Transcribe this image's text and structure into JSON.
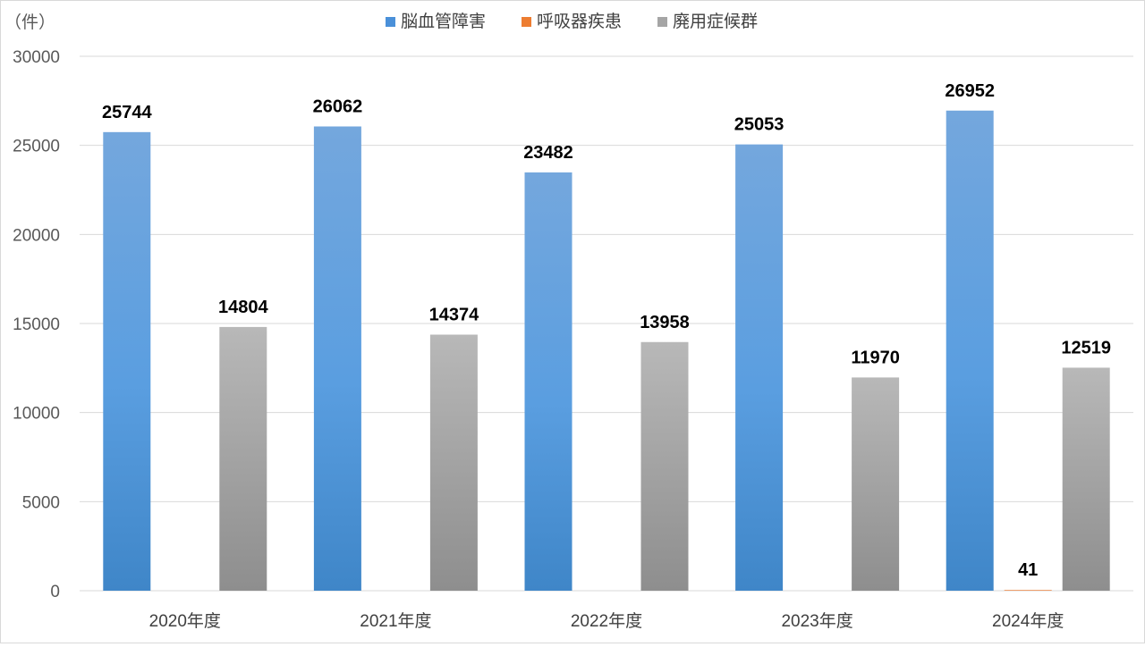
{
  "chart_data": {
    "type": "bar",
    "unit_label": "（件）",
    "categories": [
      "2020年度",
      "2021年度",
      "2022年度",
      "2023年度",
      "2024年度"
    ],
    "series": [
      {
        "name": "脳血管障害",
        "values": [
          25744,
          26062,
          23482,
          25053,
          26952
        ],
        "color": "#4a90d9"
      },
      {
        "name": "呼吸器疾患",
        "values": [
          null,
          null,
          null,
          null,
          41
        ],
        "color": "#ed7d31"
      },
      {
        "name": "廃用症候群",
        "values": [
          14804,
          14374,
          13958,
          11970,
          12519
        ],
        "color": "#a5a5a5"
      }
    ],
    "ylim": [
      0,
      30000
    ],
    "y_ticks": [
      0,
      5000,
      10000,
      15000,
      20000,
      25000,
      30000
    ],
    "grid": true,
    "legend_position": "top"
  }
}
